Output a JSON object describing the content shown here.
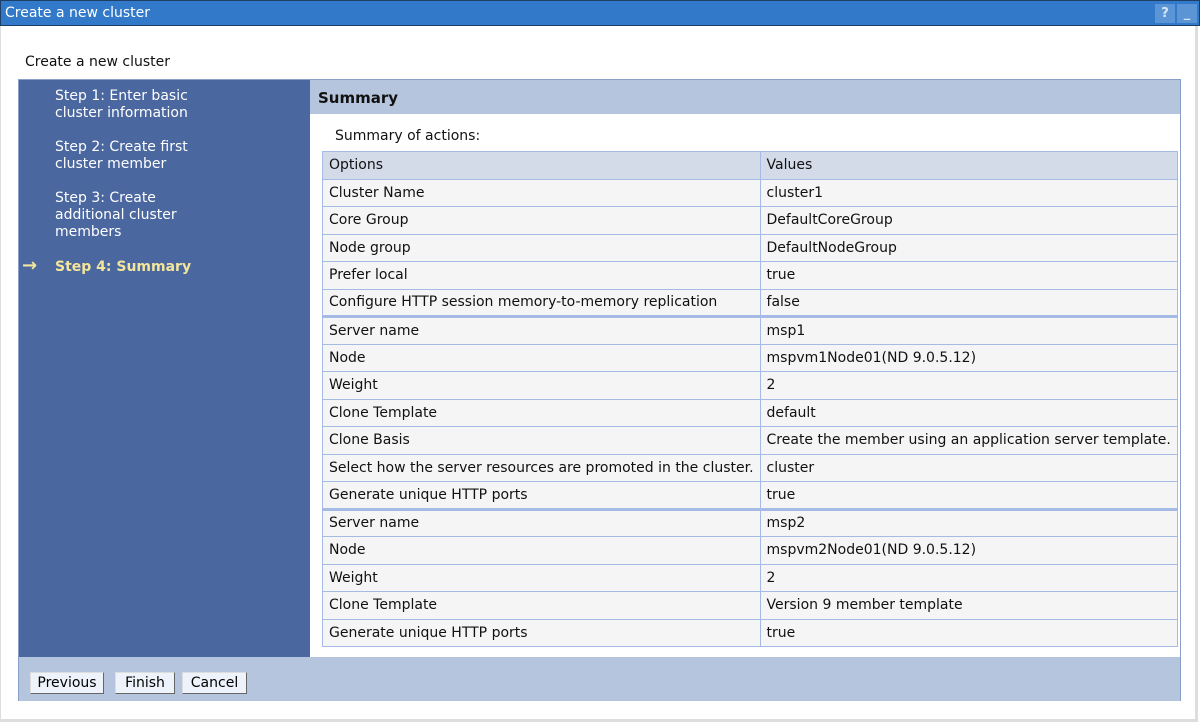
{
  "window": {
    "title": "Create a new cluster",
    "help_icon": "?",
    "minimize_icon": "_"
  },
  "page_title": "Create a new cluster",
  "steps": [
    {
      "label": "Step 1: Enter basic cluster information"
    },
    {
      "label": "Step 2: Create first cluster member"
    },
    {
      "label": "Step 3: Create additional cluster members"
    },
    {
      "label": "Step 4: Summary",
      "current": true
    }
  ],
  "current_arrow": "→",
  "summary": {
    "title": "Summary",
    "subtitle": "Summary of actions:",
    "headers": [
      "Options",
      "Values"
    ],
    "rows": [
      [
        "Cluster Name",
        "cluster1"
      ],
      [
        "Core Group",
        "DefaultCoreGroup"
      ],
      [
        "Node group",
        "DefaultNodeGroup"
      ],
      [
        "Prefer local",
        "true"
      ],
      [
        "Configure HTTP session memory-to-memory replication",
        "false"
      ],
      [
        "Server name",
        "msp1"
      ],
      [
        "Node",
        "mspvm1Node01(ND 9.0.5.12)"
      ],
      [
        "Weight",
        "2"
      ],
      [
        "Clone Template",
        "default"
      ],
      [
        "Clone Basis",
        "Create the member using an application server template."
      ],
      [
        "Select how the server resources are promoted in the cluster.",
        "cluster"
      ],
      [
        "Generate unique HTTP ports",
        "true"
      ],
      [
        "Server name",
        "msp2"
      ],
      [
        "Node",
        "mspvm2Node01(ND 9.0.5.12)"
      ],
      [
        "Weight",
        "2"
      ],
      [
        "Clone Template",
        "Version 9 member template"
      ],
      [
        "Generate unique HTTP ports",
        "true"
      ]
    ]
  },
  "buttons": {
    "previous": "Previous",
    "finish": "Finish",
    "cancel": "Cancel"
  }
}
